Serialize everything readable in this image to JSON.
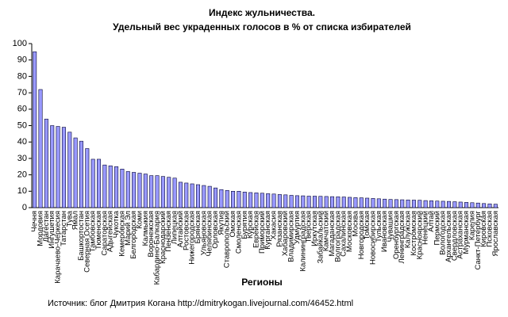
{
  "chart_data": {
    "type": "bar",
    "title": "Индекс жульничества.",
    "subtitle": "Удельный вес украденных голосов в % от списка избирателей",
    "x_label": "Регионы",
    "source": "Источник: блог Дмитрия Когана  http://dmitrykogan.livejournal.com/46452.html",
    "categories": [
      "Чечня",
      "Мордовия",
      "Дагестан",
      "Ингушетия",
      "Карачаево-Черкесия",
      "Татарстан",
      "Тува",
      "Ямал",
      "Башкортостан",
      "Северная Осетия",
      "Тамбовская",
      "Тюменская",
      "Саратовская",
      "Адыгейская",
      "Чукотка",
      "Кемеровская",
      "Марий Эл",
      "Белгородская",
      "Коми",
      "Калмыкия",
      "Воронежская",
      "Кабардино-Балкария",
      "Краснодарский",
      "Пензенская",
      "Липецкая",
      "Алтайский",
      "Ростовская",
      "Нижегородская",
      "Брянская",
      "Ульяновская",
      "Челябинская",
      "Орловская",
      "Якутия",
      "Ставропольский",
      "Омская",
      "Смоленская",
      "Бурятия",
      "Курская",
      "Еврейская",
      "Приморский",
      "Курганская",
      "Хакасия",
      "Рязанская",
      "Хабаровский",
      "Владимирская",
      "Удмуртия",
      "Калининградская",
      "Тверская",
      "Иркутская",
      "Забайкальский",
      "Камчатский",
      "Магаданская",
      "Волгоградская",
      "Сахалинская",
      "Московская",
      "Москва",
      "Новгородская",
      "Томская",
      "Новосибирская",
      "Тульская",
      "Ивановская",
      "Чувашия",
      "Оренбургская",
      "Ленинградская",
      "Калужская",
      "Костромская",
      "Красноярский",
      "Ненецкий",
      "Алтай",
      "Пермский",
      "Вологодская",
      "Архангельская",
      "Свердловская",
      "Астраханская",
      "Мурманская",
      "Карелия",
      "Санкт-Петербург",
      "Кировская",
      "Псковская",
      "Ярославская"
    ],
    "values": [
      95,
      72,
      54,
      50,
      49.5,
      49,
      46,
      42.5,
      40.5,
      36,
      29.5,
      29.5,
      26,
      25.5,
      25,
      23.5,
      22,
      21.5,
      21,
      20.5,
      19.5,
      19.5,
      19,
      18.5,
      18,
      15.5,
      15,
      14.5,
      14,
      13.5,
      13,
      12,
      11,
      10.5,
      10,
      10,
      9.5,
      9.2,
      9,
      8.8,
      8.5,
      8.3,
      8,
      7.8,
      7.5,
      7.3,
      7.2,
      7,
      7,
      6.9,
      6.8,
      6.7,
      6.6,
      6.5,
      6.3,
      6.1,
      6,
      5.8,
      5.6,
      5.4,
      5.2,
      5,
      4.9,
      4.8,
      4.7,
      4.6,
      4.5,
      4.3,
      4.2,
      4,
      3.9,
      3.8,
      3.6,
      3.4,
      3.2,
      3,
      2.8,
      2.5,
      2.3,
      2.1
    ],
    "color": "#9999ff",
    "ylim": [
      0,
      100
    ],
    "yticks": [
      0,
      10,
      20,
      30,
      40,
      50,
      60,
      70,
      80,
      90,
      100
    ],
    "grid": false
  }
}
